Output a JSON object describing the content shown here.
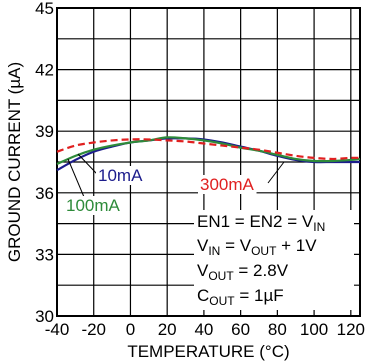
{
  "chart_data": {
    "type": "line",
    "title": "",
    "xlabel": "TEMPERATURE (°C)",
    "ylabel": "GROUND CURRENT (µA)",
    "xlim": [
      -40,
      125
    ],
    "ylim": [
      30,
      45
    ],
    "xticks": [
      -40,
      -20,
      0,
      20,
      40,
      60,
      80,
      100,
      120
    ],
    "xtick_labels": [
      "-40",
      "-20",
      "0",
      "20",
      "40",
      "60",
      "80",
      "100",
      "120"
    ],
    "yticks": [
      30,
      33,
      36,
      39,
      42,
      45
    ],
    "ytick_labels": [
      "30",
      "33",
      "36",
      "39",
      "42",
      "45"
    ],
    "grid": true,
    "series": [
      {
        "name": "10mA",
        "color": "#1c1c8c",
        "dash": "solid",
        "x": [
          -40,
          -30,
          -20,
          -10,
          0,
          10,
          20,
          30,
          40,
          50,
          60,
          70,
          80,
          90,
          100,
          110,
          120,
          125
        ],
        "y": [
          37.1,
          37.6,
          38.0,
          38.25,
          38.45,
          38.55,
          38.65,
          38.65,
          38.6,
          38.45,
          38.25,
          38.05,
          37.8,
          37.6,
          37.5,
          37.5,
          37.5,
          37.5
        ]
      },
      {
        "name": "100mA",
        "color": "#2e8b3a",
        "dash": "solid",
        "x": [
          -40,
          -30,
          -20,
          -10,
          0,
          10,
          20,
          30,
          40,
          50,
          60,
          70,
          80,
          90,
          100,
          110,
          120,
          125
        ],
        "y": [
          37.4,
          37.8,
          38.1,
          38.3,
          38.45,
          38.55,
          38.7,
          38.65,
          38.55,
          38.4,
          38.2,
          38.05,
          37.85,
          37.65,
          37.55,
          37.55,
          37.6,
          37.65
        ]
      },
      {
        "name": "300mA",
        "color": "#e02020",
        "dash": "dashed",
        "x": [
          -40,
          -30,
          -20,
          -10,
          0,
          10,
          20,
          30,
          40,
          50,
          60,
          70,
          80,
          90,
          100,
          110,
          120,
          125
        ],
        "y": [
          38.0,
          38.3,
          38.45,
          38.55,
          38.6,
          38.6,
          38.55,
          38.5,
          38.4,
          38.3,
          38.2,
          38.1,
          37.95,
          37.8,
          37.7,
          37.65,
          37.7,
          37.7
        ]
      }
    ],
    "annotations": [
      {
        "base": "EN1 = EN2 = V",
        "sub": "IN",
        "tail": ""
      },
      {
        "base": "V",
        "sub": "IN",
        "tail": " = V",
        "sub2": "OUT",
        "tail2": " + 1V"
      },
      {
        "base": "V",
        "sub": "OUT",
        "tail": " = 2.8V"
      },
      {
        "base": "C",
        "sub": "OUT",
        "tail": " = 1µF"
      }
    ]
  }
}
